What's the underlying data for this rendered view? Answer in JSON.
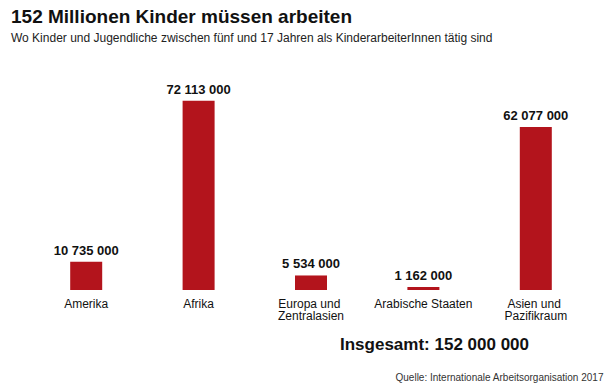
{
  "chart_data": {
    "type": "bar",
    "title": "152 Millionen Kinder müssen arbeiten",
    "subtitle": "Wo Kinder und Jugendliche zwischen fünf und 17 Jahren als KinderarbeiterInnen tätig sind",
    "categories": [
      "Amerika",
      "Afrika",
      "Europa und Zentralasien",
      "Arabische Staaten",
      "Asien und Pazifikraum"
    ],
    "values": [
      10735000,
      72113000,
      5534000,
      1162000,
      62077000
    ],
    "value_labels": [
      "10 735 000",
      "72 113 000",
      "5 534 000",
      "1 162 000",
      "62 077 000"
    ],
    "color": "#b3141c",
    "data_labels": true,
    "tick_labels": "x",
    "grid": false,
    "annotations": {
      "total": "Insgesamt: 152 000 000",
      "source": "Quelle: Internationale Arbeitsorganisation 2017"
    }
  }
}
